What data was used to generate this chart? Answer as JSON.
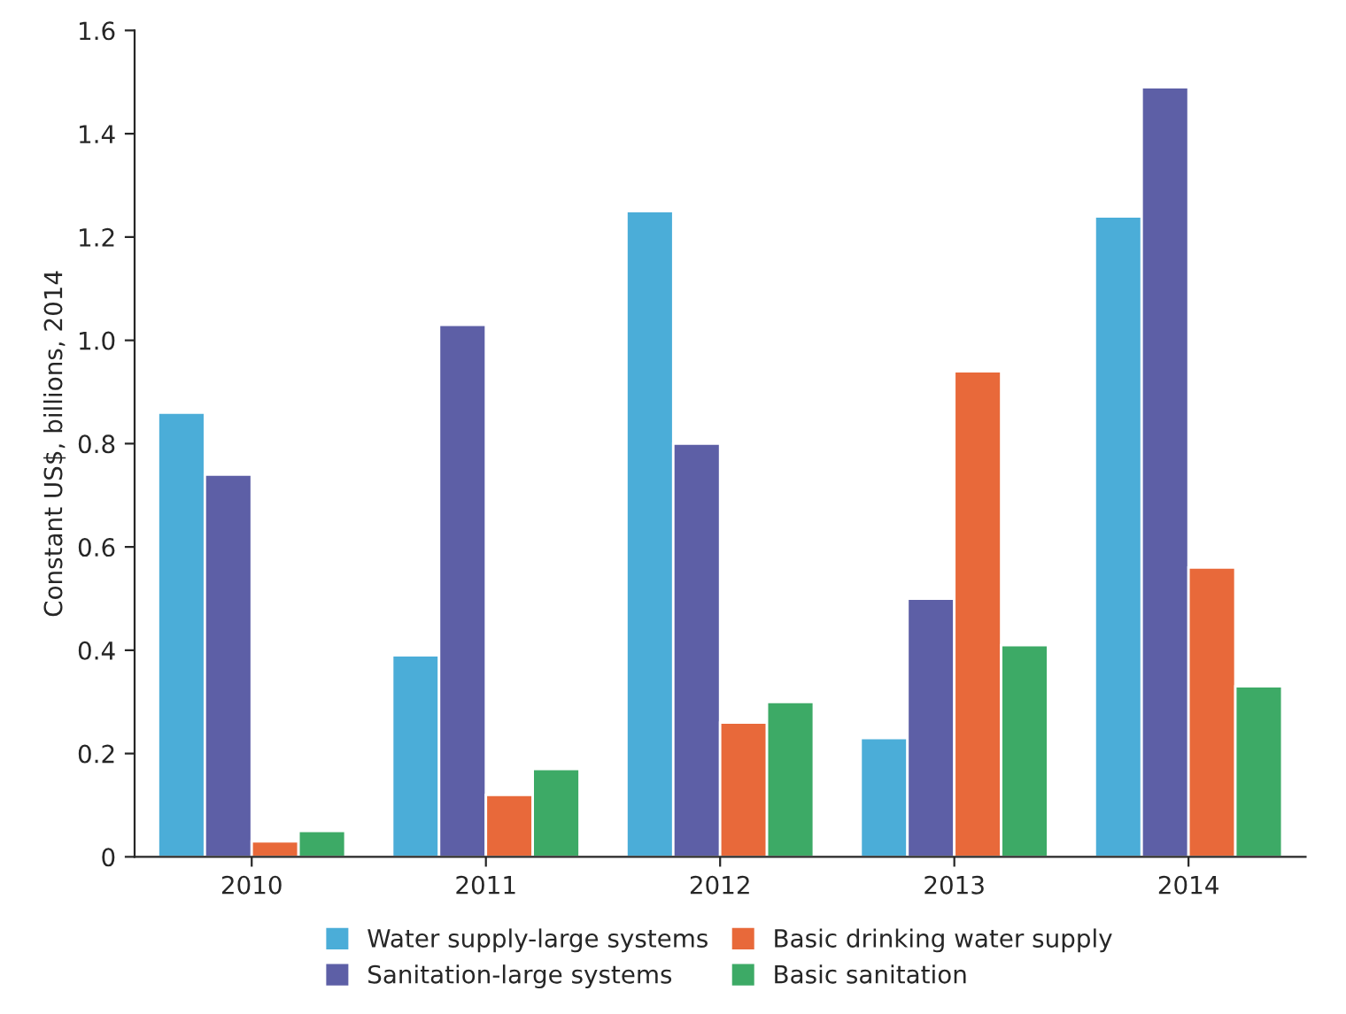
{
  "chart_data": {
    "type": "bar",
    "ylabel": "Constant US$, billions, 2014",
    "categories": [
      "2010",
      "2011",
      "2012",
      "2013",
      "2014"
    ],
    "series": [
      {
        "name": "Water supply-large systems",
        "color": "#4badd8",
        "values": [
          0.86,
          0.39,
          1.25,
          0.23,
          1.24
        ]
      },
      {
        "name": "Sanitation-large systems",
        "color": "#5d5fa6",
        "values": [
          0.74,
          1.03,
          0.8,
          0.5,
          1.49
        ]
      },
      {
        "name": "Basic drinking water supply",
        "color": "#e8693a",
        "values": [
          0.03,
          0.12,
          0.26,
          0.94,
          0.56
        ]
      },
      {
        "name": "Basic sanitation",
        "color": "#3daa66",
        "values": [
          0.05,
          0.17,
          0.3,
          0.41,
          0.33
        ]
      }
    ],
    "ylim": [
      0,
      1.6
    ],
    "yticks": [
      0,
      0.2,
      0.4,
      0.6,
      0.8,
      {
        "value": 1,
        "label": "1.0"
      },
      1.2,
      1.4,
      1.6
    ],
    "grid": false,
    "legend": "bottom"
  }
}
